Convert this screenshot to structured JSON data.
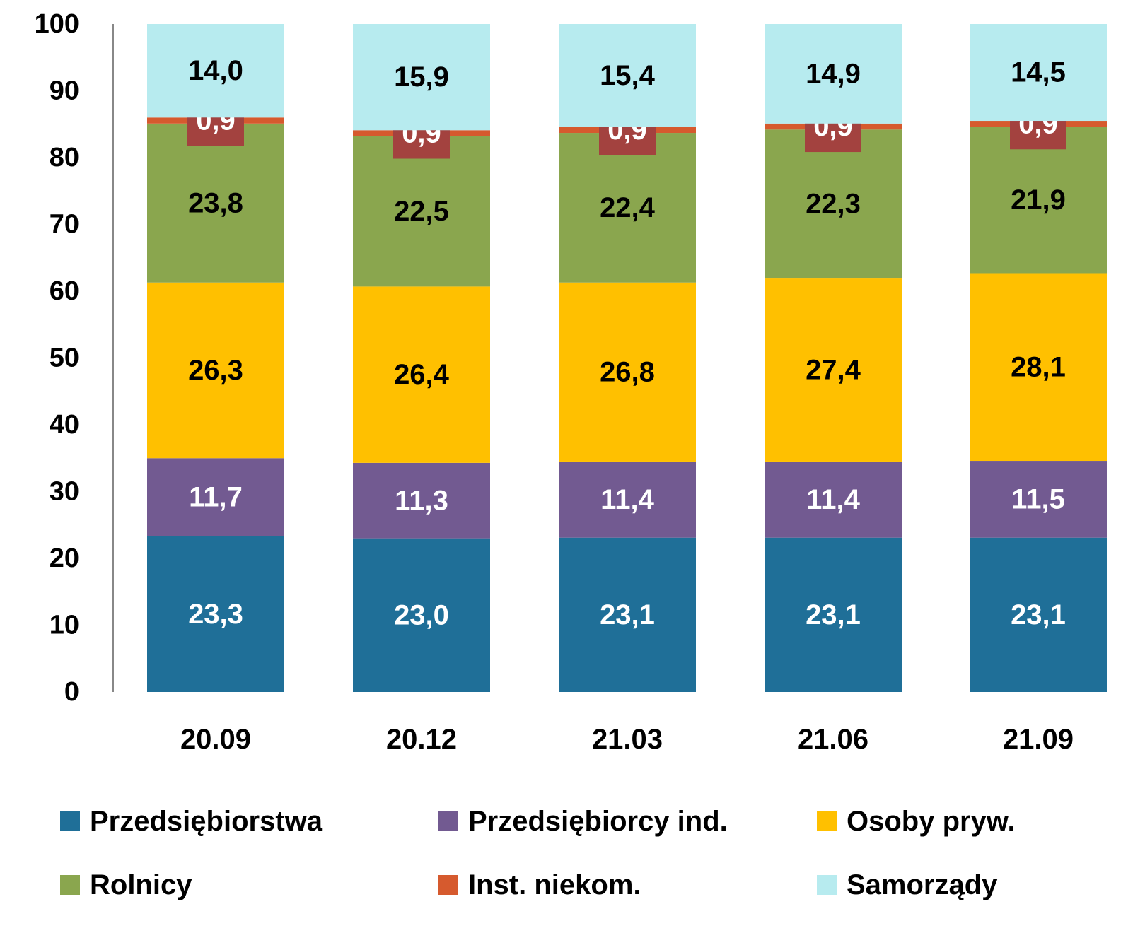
{
  "chart_data": {
    "type": "stacked_bar",
    "categories": [
      "20.09",
      "20.12",
      "21.03",
      "21.06",
      "21.09"
    ],
    "series": [
      {
        "name": "Przedsiębiorstwa",
        "color": "#1f6f98",
        "label_color": "#ffffff",
        "values": [
          23.3,
          23.0,
          23.1,
          23.1,
          23.1
        ],
        "value_labels": [
          "23,3",
          "23,0",
          "23,1",
          "23,1",
          "23,1"
        ]
      },
      {
        "name": "Przedsiębiorcy ind.",
        "color": "#725a91",
        "label_color": "#ffffff",
        "values": [
          11.7,
          11.3,
          11.4,
          11.4,
          11.5
        ],
        "value_labels": [
          "11,7",
          "11,3",
          "11,4",
          "11,4",
          "11,5"
        ]
      },
      {
        "name": "Osoby pryw.",
        "color": "#ffc000",
        "label_color": "#000000",
        "values": [
          26.3,
          26.4,
          26.8,
          27.4,
          28.1
        ],
        "value_labels": [
          "26,3",
          "26,4",
          "26,8",
          "27,4",
          "28,1"
        ]
      },
      {
        "name": "Rolnicy",
        "color": "#8aa64e",
        "label_color": "#000000",
        "values": [
          23.8,
          22.5,
          22.4,
          22.3,
          21.9
        ],
        "value_labels": [
          "23,8",
          "22,5",
          "22,4",
          "22,3",
          "21,9"
        ]
      },
      {
        "name": "Inst. niekom.",
        "color": "#d65a2e",
        "label_color": "#ffffff",
        "label_box": "#a3423f",
        "values": [
          0.9,
          0.9,
          0.9,
          0.9,
          0.9
        ],
        "value_labels": [
          "0,9",
          "0,9",
          "0,9",
          "0,9",
          "0,9"
        ]
      },
      {
        "name": "Samorządy",
        "color": "#b7ebef",
        "label_color": "#000000",
        "values": [
          14.0,
          15.9,
          15.4,
          14.9,
          14.5
        ],
        "value_labels": [
          "14,0",
          "15,9",
          "15,4",
          "14,9",
          "14,5"
        ]
      }
    ],
    "ylim": [
      0,
      100
    ],
    "yticks": [
      0,
      10,
      20,
      30,
      40,
      50,
      60,
      70,
      80,
      90,
      100
    ],
    "grid": false
  }
}
